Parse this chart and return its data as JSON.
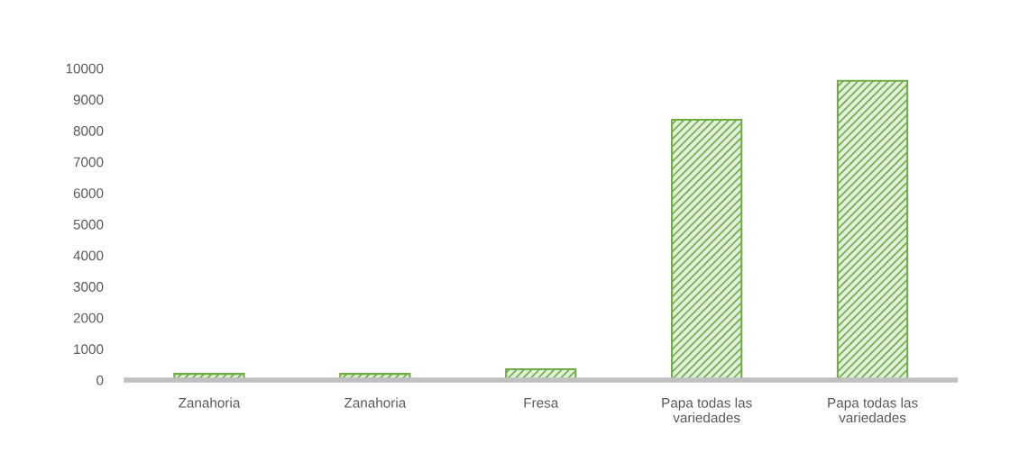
{
  "chart_data": {
    "type": "bar",
    "categories": [
      "Zanahoria",
      "Zanahoria",
      "Fresa",
      "Papa todas las\nvariedades",
      "Papa todas las\nvariedades"
    ],
    "values": [
      200,
      200,
      350,
      8350,
      9600
    ],
    "color": "#70ad47",
    "ylim": [
      0,
      10000
    ],
    "yticks": [
      0,
      1000,
      2000,
      3000,
      4000,
      5000,
      6000,
      7000,
      8000,
      9000,
      10000
    ],
    "grid": false,
    "legend": false
  }
}
